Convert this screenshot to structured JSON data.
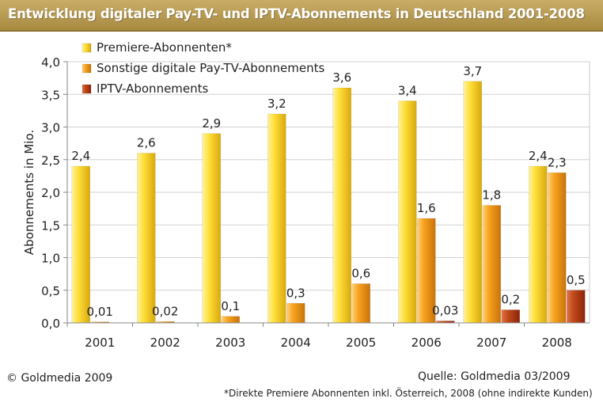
{
  "title": "Entwicklung digitaler Pay-TV- und IPTV-Abonnements in Deutschland 2001-2008",
  "footer": {
    "copyright": "© Goldmedia 2009",
    "source": "Quelle: Goldmedia 03/2009",
    "footnote": "*Direkte Premiere Abonnenten inkl. Österreich, 2008 (ohne indirekte Kunden)"
  },
  "chart_data": {
    "type": "bar",
    "title": "Entwicklung digitaler Pay-TV- und IPTV-Abonnements in Deutschland 2001-2008",
    "xlabel": "",
    "ylabel": "Abonnements in Mio.",
    "ylim": [
      0,
      4
    ],
    "yticks": [
      "0,0",
      "0,5",
      "1,0",
      "1,5",
      "2,0",
      "2,5",
      "3,0",
      "3,5",
      "4,0"
    ],
    "categories": [
      "2001",
      "2002",
      "2003",
      "2004",
      "2005",
      "2006",
      "2007",
      "2008"
    ],
    "legend_position": "top-left",
    "grid": true,
    "series": [
      {
        "name": "Premiere-Abonnenten*",
        "color": "#f2c81a",
        "values": [
          2.4,
          2.6,
          2.9,
          3.2,
          3.6,
          3.4,
          3.7,
          2.4
        ],
        "labels": [
          "2,4",
          "2,6",
          "2,9",
          "3,2",
          "3,6",
          "3,4",
          "3,7",
          "2,4"
        ]
      },
      {
        "name": "Sonstige digitale Pay-TV-Abonnements",
        "color": "#f0980c",
        "values": [
          0.01,
          0.02,
          0.1,
          0.3,
          0.6,
          1.6,
          1.8,
          2.3
        ],
        "labels": [
          "0,01",
          "0,02",
          "0,1",
          "0,3",
          "0,6",
          "1,6",
          "1,8",
          "2,3"
        ]
      },
      {
        "name": "IPTV-Abonnements",
        "color": "#b23a12",
        "values": [
          0,
          0,
          0,
          0,
          0,
          0.03,
          0.2,
          0.5
        ],
        "labels": [
          "",
          "",
          "",
          "",
          "",
          "0,03",
          "0,2",
          "0,5"
        ]
      }
    ]
  }
}
